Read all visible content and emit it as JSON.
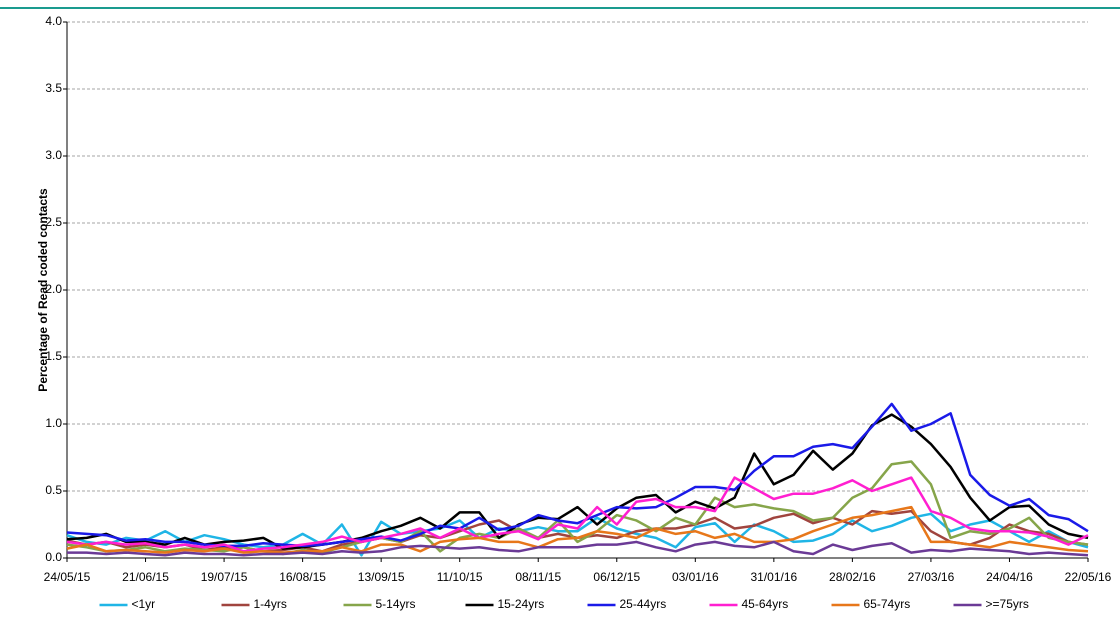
{
  "chart_data": {
    "type": "line",
    "y_label": "Percentage of Read coded contacts",
    "ylim": [
      0,
      4
    ],
    "yticks": [
      {
        "value": 0,
        "label": "0.0"
      },
      {
        "value": 0.5,
        "label": "0.5"
      },
      {
        "value": 1,
        "label": "1.0"
      },
      {
        "value": 1.5,
        "label": "1.5"
      },
      {
        "value": 2,
        "label": "2.0"
      },
      {
        "value": 2.5,
        "label": "2.5"
      },
      {
        "value": 3,
        "label": "3.0"
      },
      {
        "value": 3.5,
        "label": "3.5"
      },
      {
        "value": 4,
        "label": "4.0"
      }
    ],
    "grid": true,
    "legend": "bottom",
    "categories": [
      "24/05/15",
      null,
      null,
      null,
      "21/06/15",
      null,
      null,
      null,
      "19/07/15",
      null,
      null,
      null,
      "16/08/15",
      null,
      null,
      null,
      "13/09/15",
      null,
      null,
      null,
      "11/10/15",
      null,
      null,
      null,
      "08/11/15",
      null,
      null,
      null,
      "06/12/15",
      null,
      null,
      null,
      "03/01/16",
      null,
      null,
      null,
      "31/01/16",
      null,
      null,
      null,
      "28/02/16",
      null,
      null,
      null,
      "27/03/16",
      null,
      null,
      null,
      "24/04/16",
      null,
      null,
      null,
      "22/05/16"
    ],
    "series": [
      {
        "name": "<1yr",
        "color": "#1fb5e6",
        "values": [
          0.17,
          0.12,
          0.1,
          0.15,
          0.13,
          0.2,
          0.12,
          0.17,
          0.14,
          0.1,
          0.08,
          0.1,
          0.18,
          0.1,
          0.25,
          0.02,
          0.27,
          0.18,
          0.2,
          0.22,
          0.28,
          0.15,
          0.22,
          0.2,
          0.23,
          0.2,
          0.2,
          0.3,
          0.22,
          0.18,
          0.15,
          0.08,
          0.23,
          0.26,
          0.12,
          0.25,
          0.2,
          0.12,
          0.13,
          0.18,
          0.28,
          0.2,
          0.24,
          0.3,
          0.33,
          0.2,
          0.25,
          0.28,
          0.2,
          0.12,
          0.2,
          0.12,
          0.08
        ]
      },
      {
        "name": "1-4yrs",
        "color": "#a0443e",
        "values": [
          0.13,
          0.1,
          0.12,
          0.08,
          0.1,
          0.08,
          0.1,
          0.06,
          0.08,
          0.08,
          0.05,
          0.06,
          0.08,
          0.05,
          0.1,
          0.12,
          0.15,
          0.12,
          0.17,
          0.15,
          0.2,
          0.25,
          0.28,
          0.2,
          0.15,
          0.18,
          0.15,
          0.17,
          0.15,
          0.2,
          0.22,
          0.22,
          0.25,
          0.3,
          0.22,
          0.24,
          0.3,
          0.33,
          0.26,
          0.3,
          0.25,
          0.35,
          0.33,
          0.35,
          0.2,
          0.12,
          0.1,
          0.15,
          0.25,
          0.2,
          0.18,
          0.12,
          0.1
        ]
      },
      {
        "name": "5-14yrs",
        "color": "#86a54a",
        "values": [
          0.1,
          0.08,
          0.05,
          0.06,
          0.08,
          0.05,
          0.07,
          0.06,
          0.05,
          0.08,
          0.05,
          0.03,
          0.06,
          0.04,
          0.08,
          0.12,
          0.15,
          0.12,
          0.2,
          0.05,
          0.15,
          0.18,
          0.15,
          0.22,
          0.15,
          0.28,
          0.12,
          0.2,
          0.32,
          0.28,
          0.2,
          0.3,
          0.25,
          0.45,
          0.38,
          0.4,
          0.37,
          0.35,
          0.28,
          0.3,
          0.45,
          0.52,
          0.7,
          0.72,
          0.55,
          0.15,
          0.2,
          0.18,
          0.22,
          0.3,
          0.15,
          0.12,
          0.1
        ]
      },
      {
        "name": "15-24yrs",
        "color": "#000000",
        "values": [
          0.14,
          0.15,
          0.18,
          0.12,
          0.12,
          0.1,
          0.15,
          0.1,
          0.12,
          0.13,
          0.15,
          0.07,
          0.08,
          0.1,
          0.12,
          0.15,
          0.2,
          0.24,
          0.3,
          0.22,
          0.34,
          0.34,
          0.15,
          0.25,
          0.3,
          0.29,
          0.38,
          0.25,
          0.37,
          0.45,
          0.47,
          0.34,
          0.42,
          0.37,
          0.45,
          0.78,
          0.55,
          0.62,
          0.8,
          0.66,
          0.78,
          0.99,
          1.07,
          0.98,
          0.85,
          0.68,
          0.45,
          0.28,
          0.38,
          0.39,
          0.25,
          0.18,
          0.15
        ]
      },
      {
        "name": "25-44yrs",
        "color": "#1a1ae8",
        "values": [
          0.19,
          0.18,
          0.17,
          0.13,
          0.14,
          0.12,
          0.12,
          0.1,
          0.09,
          0.09,
          0.11,
          0.1,
          0.09,
          0.1,
          0.12,
          0.14,
          0.16,
          0.13,
          0.18,
          0.24,
          0.22,
          0.3,
          0.21,
          0.24,
          0.32,
          0.28,
          0.26,
          0.32,
          0.38,
          0.37,
          0.38,
          0.45,
          0.53,
          0.53,
          0.51,
          0.65,
          0.76,
          0.76,
          0.83,
          0.85,
          0.82,
          0.98,
          1.15,
          0.95,
          1.0,
          1.08,
          0.62,
          0.47,
          0.39,
          0.44,
          0.32,
          0.29,
          0.2
        ]
      },
      {
        "name": "45-64yrs",
        "color": "#ff1fd0",
        "values": [
          0.12,
          0.1,
          0.12,
          0.1,
          0.11,
          0.08,
          0.1,
          0.08,
          0.1,
          0.05,
          0.07,
          0.08,
          0.1,
          0.12,
          0.16,
          0.12,
          0.15,
          0.18,
          0.22,
          0.15,
          0.22,
          0.15,
          0.18,
          0.2,
          0.14,
          0.25,
          0.22,
          0.38,
          0.25,
          0.42,
          0.44,
          0.38,
          0.38,
          0.35,
          0.6,
          0.52,
          0.44,
          0.48,
          0.48,
          0.52,
          0.58,
          0.5,
          0.55,
          0.6,
          0.35,
          0.3,
          0.22,
          0.2,
          0.2,
          0.19,
          0.16,
          0.1,
          0.17
        ]
      },
      {
        "name": "65-74yrs",
        "color": "#e7771a",
        "values": [
          0.07,
          0.1,
          0.05,
          0.06,
          0.05,
          0.04,
          0.06,
          0.05,
          0.07,
          0.04,
          0.05,
          0.04,
          0.05,
          0.05,
          0.08,
          0.05,
          0.1,
          0.1,
          0.05,
          0.12,
          0.14,
          0.15,
          0.12,
          0.12,
          0.08,
          0.14,
          0.15,
          0.2,
          0.18,
          0.15,
          0.22,
          0.18,
          0.2,
          0.15,
          0.18,
          0.12,
          0.12,
          0.14,
          0.2,
          0.25,
          0.3,
          0.32,
          0.35,
          0.38,
          0.12,
          0.12,
          0.1,
          0.08,
          0.12,
          0.1,
          0.08,
          0.06,
          0.05
        ]
      },
      {
        "name": ">=75yrs",
        "color": "#6b3a96",
        "values": [
          0.04,
          0.04,
          0.03,
          0.04,
          0.03,
          0.02,
          0.04,
          0.03,
          0.03,
          0.02,
          0.03,
          0.03,
          0.04,
          0.03,
          0.05,
          0.04,
          0.05,
          0.08,
          0.09,
          0.08,
          0.07,
          0.08,
          0.06,
          0.05,
          0.08,
          0.08,
          0.08,
          0.1,
          0.1,
          0.12,
          0.08,
          0.05,
          0.1,
          0.12,
          0.09,
          0.08,
          0.12,
          0.05,
          0.03,
          0.1,
          0.06,
          0.09,
          0.11,
          0.04,
          0.06,
          0.05,
          0.07,
          0.06,
          0.05,
          0.03,
          0.04,
          0.03,
          0.02
        ]
      }
    ]
  }
}
